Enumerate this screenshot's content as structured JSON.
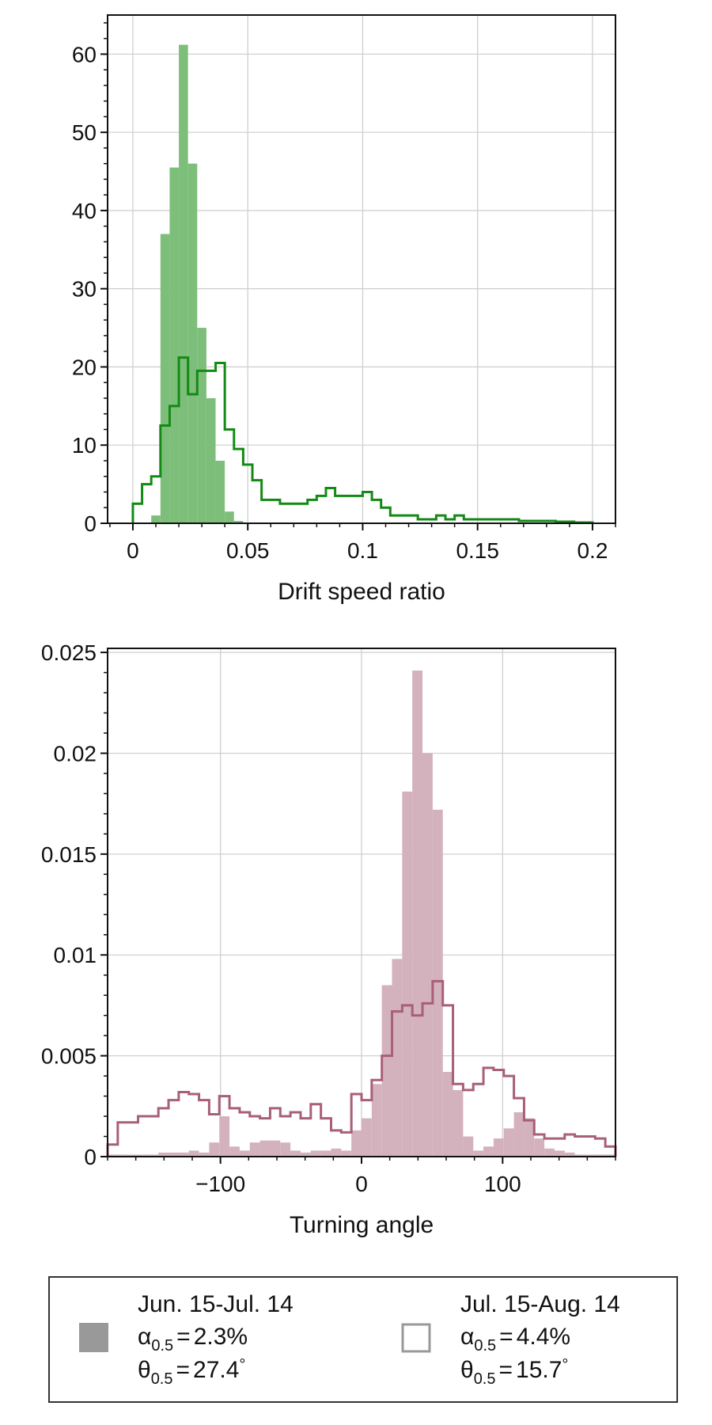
{
  "chart_data": [
    {
      "type": "histogram",
      "xlabel": "Drift speed ratio",
      "ylabel": "",
      "xlim": [
        -0.011,
        0.21
      ],
      "ylim": [
        0,
        65
      ],
      "grid": true,
      "bin_width": 0.004,
      "x_ticks": [
        0,
        0.05,
        0.1,
        0.15,
        0.2
      ],
      "x_tick_labels": [
        "0",
        "0.05",
        "0.1",
        "0.15",
        "0.2"
      ],
      "y_ticks": [
        0,
        10,
        20,
        30,
        40,
        50,
        60
      ],
      "y_tick_labels": [
        "0",
        "10",
        "20",
        "30",
        "40",
        "50",
        "60"
      ],
      "filled_color": "#7dbf7a",
      "step_color": "#138a15",
      "filled": {
        "bin_starts": [
          0.008,
          0.012,
          0.016,
          0.02,
          0.024,
          0.028,
          0.032,
          0.036,
          0.04,
          0.044
        ],
        "values": [
          1.0,
          37.0,
          45.5,
          61.2,
          46.0,
          25.0,
          16.0,
          8.0,
          1.5,
          0.3
        ]
      },
      "step": {
        "bin_starts": [
          0.0,
          0.004,
          0.008,
          0.012,
          0.016,
          0.02,
          0.024,
          0.028,
          0.032,
          0.036,
          0.04,
          0.044,
          0.048,
          0.052,
          0.056,
          0.06,
          0.064,
          0.068,
          0.072,
          0.076,
          0.08,
          0.084,
          0.088,
          0.092,
          0.096,
          0.1,
          0.104,
          0.108,
          0.112,
          0.116,
          0.12,
          0.124,
          0.128,
          0.132,
          0.136,
          0.14,
          0.144,
          0.148,
          0.152,
          0.156,
          0.16,
          0.164,
          0.168,
          0.172,
          0.176,
          0.18,
          0.184,
          0.188,
          0.192,
          0.196
        ],
        "values": [
          2.5,
          5.0,
          6.0,
          12.5,
          15.0,
          21.2,
          16.5,
          19.5,
          19.5,
          20.5,
          12.0,
          9.5,
          7.5,
          5.5,
          3.0,
          3.0,
          2.5,
          2.5,
          2.5,
          3.0,
          3.5,
          4.5,
          3.5,
          3.5,
          3.5,
          4.0,
          3.0,
          2.0,
          1.0,
          1.0,
          1.0,
          0.5,
          0.5,
          1.0,
          0.5,
          1.0,
          0.5,
          0.5,
          0.5,
          0.5,
          0.5,
          0.5,
          0.3,
          0.3,
          0.3,
          0.3,
          0.2,
          0.2,
          0.1,
          0.1
        ]
      }
    },
    {
      "type": "histogram",
      "xlabel": "Turning angle",
      "ylabel": "",
      "xlim": [
        -180,
        180
      ],
      "ylim": [
        0,
        0.0252
      ],
      "grid": true,
      "bin_width": 7.2,
      "x_ticks": [
        -100,
        0,
        100
      ],
      "x_tick_labels": [
        "−100",
        "0",
        "100"
      ],
      "y_ticks": [
        0,
        0.005,
        0.01,
        0.015,
        0.02,
        0.025
      ],
      "y_tick_labels": [
        "0",
        "0.005",
        "0.01",
        "0.015",
        "0.02",
        "0.025"
      ],
      "filled_color": "#d3b1bd",
      "step_color": "#a85f79",
      "filled": {
        "values": [
          0.0001,
          0.0001,
          0.0001,
          0.0001,
          0.0001,
          0.0002,
          0.0002,
          0.0002,
          0.0003,
          0.0002,
          0.0007,
          0.002,
          0.0005,
          0.0003,
          0.0007,
          0.0008,
          0.0008,
          0.0007,
          0.0003,
          0.0002,
          0.0003,
          0.0003,
          0.0004,
          0.0003,
          0.0013,
          0.0019,
          0.0036,
          0.0085,
          0.0098,
          0.0181,
          0.0241,
          0.02,
          0.0172,
          0.0042,
          0.0033,
          0.001,
          0.0003,
          0.0005,
          0.0009,
          0.0014,
          0.0022,
          0.0019,
          0.0009,
          0.0004,
          0.0003,
          0.0002,
          0.0001,
          0.0001,
          0.0001,
          0.0001
        ]
      },
      "step": {
        "values": [
          0.0006,
          0.0017,
          0.0017,
          0.002,
          0.002,
          0.0024,
          0.0028,
          0.0032,
          0.0031,
          0.0028,
          0.0021,
          0.003,
          0.0024,
          0.0022,
          0.002,
          0.0019,
          0.0024,
          0.002,
          0.0022,
          0.0019,
          0.0026,
          0.0019,
          0.0013,
          0.0012,
          0.0031,
          0.0028,
          0.0038,
          0.005,
          0.0072,
          0.0075,
          0.007,
          0.0076,
          0.0087,
          0.0075,
          0.0036,
          0.0033,
          0.0036,
          0.0044,
          0.0043,
          0.004,
          0.0029,
          0.0018,
          0.0011,
          0.0009,
          0.0009,
          0.0011,
          0.001,
          0.001,
          0.0009,
          0.0005
        ]
      }
    }
  ],
  "legend": {
    "items": [
      {
        "date": "Jun. 15-Jul. 14",
        "alpha_sym": "α",
        "alpha_sub": "0.5",
        "alpha_val": "2.3%",
        "theta_sym": "θ",
        "theta_sub": "0.5",
        "theta_val": "27.4",
        "marker": "filled",
        "marker_color": "#999999"
      },
      {
        "date": "Jul. 15-Aug. 14",
        "alpha_sym": "α",
        "alpha_sub": "0.5",
        "alpha_val": "4.4%",
        "theta_sym": "θ",
        "theta_sub": "0.5",
        "theta_val": "15.7",
        "marker": "outline",
        "marker_color": "#999999"
      }
    ],
    "equals": "=",
    "degree": "°"
  }
}
